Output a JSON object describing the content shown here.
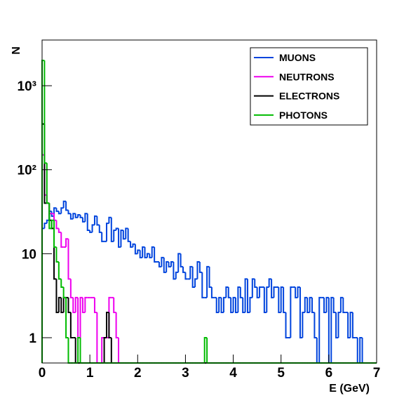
{
  "chart_data": {
    "type": "histogram",
    "x_label": "E (GeV)",
    "y_label": "N",
    "log_y": true,
    "legend_position": "upper right",
    "xlim": [
      0,
      7
    ],
    "ylim": [
      0.5,
      3500
    ],
    "xticks": [
      0,
      1,
      2,
      3,
      4,
      5,
      6,
      7
    ],
    "yticks": [
      1,
      10,
      {
        "value": 100,
        "label": "10²"
      },
      {
        "value": 1000,
        "label": "10³"
      }
    ],
    "bins": [
      0,
      0.05,
      0.1,
      0.15,
      0.2,
      0.25,
      0.3,
      0.35,
      0.4,
      0.45,
      0.5,
      0.55,
      0.6,
      0.65,
      0.7,
      0.75,
      0.8,
      0.85,
      0.9,
      0.95,
      1,
      1.05,
      1.1,
      1.15,
      1.2,
      1.25,
      1.3,
      1.35,
      1.4,
      1.45,
      1.5,
      1.55,
      1.6,
      1.65,
      1.7,
      1.75,
      1.8,
      1.85,
      1.9,
      1.95,
      2,
      2.05,
      2.1,
      2.15,
      2.2,
      2.25,
      2.3,
      2.35,
      2.4,
      2.45,
      2.5,
      2.55,
      2.6,
      2.65,
      2.7,
      2.75,
      2.8,
      2.85,
      2.9,
      2.95,
      3,
      3.05,
      3.1,
      3.15,
      3.2,
      3.25,
      3.3,
      3.35,
      3.4,
      3.45,
      3.5,
      3.55,
      3.6,
      3.65,
      3.7,
      3.75,
      3.8,
      3.85,
      3.9,
      3.95,
      4,
      4.05,
      4.1,
      4.15,
      4.2,
      4.25,
      4.3,
      4.35,
      4.4,
      4.45,
      4.5,
      4.55,
      4.6,
      4.65,
      4.7,
      4.75,
      4.8,
      4.85,
      4.9,
      4.95,
      5,
      5.05,
      5.1,
      5.15,
      5.2,
      5.25,
      5.3,
      5.35,
      5.4,
      5.45,
      5.5,
      5.55,
      5.6,
      5.65,
      5.7,
      5.75,
      5.8,
      5.85,
      5.9,
      5.95,
      6,
      6.05,
      6.1,
      6.15,
      6.2,
      6.25,
      6.3,
      6.35,
      6.4,
      6.45,
      6.5,
      6.55,
      6.6,
      6.65,
      6.7,
      6.75,
      6.8,
      6.85,
      6.9,
      6.95,
      7
    ],
    "series": [
      {
        "name": "MUONS",
        "color": "#0044dd",
        "values": [
          20,
          23,
          25,
          32,
          28,
          35,
          32,
          30,
          35,
          42,
          33,
          30,
          26,
          30,
          27,
          29,
          27,
          24,
          30,
          19,
          18,
          22,
          28,
          22,
          18,
          14,
          14,
          23,
          27,
          14,
          19,
          20,
          12,
          19,
          15,
          20,
          14,
          12,
          13,
          10,
          11,
          9,
          12,
          9,
          10,
          9,
          12,
          8,
          8,
          7,
          9,
          6,
          8,
          7,
          8,
          5,
          6,
          10,
          7,
          6,
          5,
          5,
          7,
          4,
          5,
          8,
          6,
          3,
          3,
          7,
          4,
          3,
          3,
          2,
          3,
          2,
          3,
          4,
          3,
          2,
          3,
          2,
          4,
          3,
          2,
          5,
          2,
          3,
          5,
          4,
          3,
          4,
          4,
          2,
          4,
          5,
          3,
          4,
          4,
          2,
          4,
          2,
          1,
          1,
          4,
          4,
          3,
          4,
          1,
          2,
          3,
          2,
          3,
          2,
          1,
          0,
          3,
          3,
          2,
          3,
          0,
          3,
          2,
          1,
          2,
          3,
          2,
          2,
          1,
          2,
          1,
          1,
          0,
          1,
          0,
          0,
          0,
          0,
          0,
          0
        ]
      },
      {
        "name": "NEUTRONS",
        "color": "#ee00ee",
        "values": [
          150,
          50,
          40,
          30,
          30,
          25,
          20,
          18,
          12,
          12,
          15,
          5,
          3,
          2,
          3,
          1,
          3,
          2,
          3,
          3,
          3,
          3,
          2,
          0,
          0,
          1,
          1,
          1,
          3,
          3,
          2,
          1,
          0,
          0,
          0,
          0,
          0,
          0,
          0,
          0,
          0,
          0,
          0,
          0,
          0,
          0,
          0,
          0,
          0,
          0,
          0,
          0,
          0,
          0,
          0,
          0,
          0,
          0,
          0,
          0,
          0,
          0,
          0,
          0,
          0,
          0,
          0,
          0,
          0,
          0,
          0,
          0,
          0,
          0,
          0,
          0,
          0,
          0,
          0,
          0,
          0,
          0,
          0,
          0,
          0,
          0,
          0,
          0,
          0,
          0,
          0,
          0,
          0,
          0,
          0,
          0,
          0,
          0,
          0,
          0,
          0,
          0,
          0,
          0,
          0,
          0,
          0,
          0,
          0,
          0,
          0,
          0,
          0,
          0,
          0,
          0,
          0,
          0,
          0,
          0,
          0,
          0,
          0,
          0,
          0,
          0,
          0,
          0,
          0,
          0,
          0,
          0,
          0,
          0,
          0,
          0,
          0,
          0,
          0,
          0
        ]
      },
      {
        "name": "ELECTRONS",
        "color": "#000000",
        "values": [
          350,
          40,
          40,
          25,
          20,
          5,
          2,
          3,
          2,
          3,
          3,
          2,
          1,
          1,
          0,
          0,
          0,
          0,
          0,
          0,
          0,
          0,
          0,
          0,
          0,
          0,
          1,
          2,
          1,
          0,
          0,
          0,
          0,
          0,
          0,
          0,
          0,
          0,
          0,
          0,
          0,
          0,
          0,
          0,
          0,
          0,
          0,
          0,
          0,
          0,
          0,
          0,
          0,
          0,
          0,
          0,
          0,
          0,
          0,
          0,
          0,
          0,
          0,
          0,
          0,
          0,
          0,
          0,
          0,
          0,
          0,
          0,
          0,
          0,
          0,
          0,
          0,
          0,
          0,
          0,
          0,
          0,
          0,
          0,
          0,
          0,
          0,
          0,
          0,
          0,
          0,
          0,
          0,
          0,
          0,
          0,
          0,
          0,
          0,
          0,
          0,
          0,
          0,
          0,
          0,
          0,
          0,
          0,
          0,
          0,
          0,
          0,
          0,
          0,
          0,
          0,
          0,
          0,
          0,
          0,
          0,
          0,
          0,
          0,
          0,
          0,
          0,
          0,
          0,
          0,
          0,
          0,
          0,
          0,
          0,
          0,
          0,
          0,
          0,
          0
        ]
      },
      {
        "name": "PHOTONS",
        "color": "#00bb00",
        "values": [
          2000,
          120,
          40,
          20,
          25,
          12,
          8,
          5,
          4,
          3,
          1,
          0,
          0,
          0,
          0,
          1,
          0,
          0,
          0,
          0,
          0,
          0,
          0,
          0,
          0,
          0,
          0,
          0,
          0,
          0,
          0,
          0,
          0,
          0,
          0,
          0,
          0,
          0,
          0,
          0,
          0,
          0,
          0,
          0,
          0,
          0,
          0,
          0,
          0,
          0,
          0,
          0,
          0,
          0,
          0,
          0,
          0,
          0,
          0,
          0,
          0,
          0,
          0,
          0,
          0,
          0,
          0,
          0,
          1,
          0,
          0,
          0,
          0,
          0,
          0,
          0,
          0,
          0,
          0,
          0,
          0,
          0,
          0,
          0,
          0,
          0,
          0,
          0,
          0,
          0,
          0,
          0,
          0,
          0,
          0,
          0,
          0,
          0,
          0,
          0,
          0,
          0,
          0,
          0,
          0,
          0,
          0,
          0,
          0,
          0,
          0,
          0,
          0,
          0,
          0,
          0,
          0,
          0,
          0,
          0,
          0,
          0,
          0,
          0,
          0,
          0,
          0,
          0,
          0,
          0,
          0,
          0,
          0,
          0,
          0,
          0,
          0,
          0,
          0,
          0
        ]
      }
    ]
  }
}
